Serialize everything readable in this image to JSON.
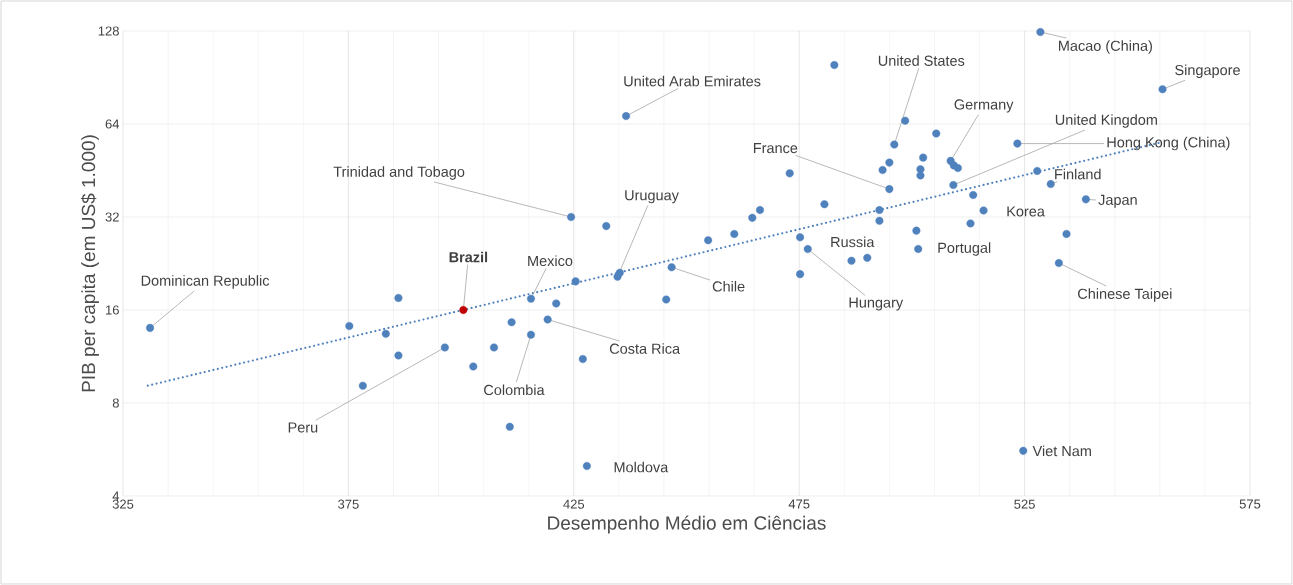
{
  "chart_data": {
    "type": "scatter",
    "xlabel": "Desempenho Médio em Ciências",
    "ylabel": "PIB per capita (em US$ 1.000)",
    "log": "y",
    "grid": true,
    "xlim": [
      325,
      575
    ],
    "ylim": [
      4,
      128
    ],
    "xticks": [
      325,
      375,
      425,
      475,
      525,
      575
    ],
    "yticks": [
      4,
      8,
      16,
      32,
      64,
      128
    ],
    "series": [
      {
        "color": "#4f81bd",
        "marker": "circle",
        "x": [
          331.0,
          386.1,
          375.2,
          383.3,
          386.1,
          378.2,
          396.4,
          402.7,
          407.3,
          424.4,
          432.2,
          454.8,
          460.6,
          434.7,
          435.2,
          425.4,
          446.7,
          445.5,
          415.5,
          421.1,
          419.2,
          411.2,
          415.5,
          427.0,
          410.8,
          427.9,
          436.6,
          482.8,
          498.5,
          496.1,
          505.4,
          502.5,
          495.0,
          493.5,
          501.9,
          501.9,
          508.6,
          509.3,
          510.2,
          495.0,
          509.2,
          513.6,
          515.9,
          513.0,
          472.9,
          480.6,
          492.8,
          492.8,
          501.0,
          501.4,
          475.2,
          476.9,
          486.6,
          490.1,
          475.2,
          466.3,
          464.6,
          528.5,
          555.6,
          523.4,
          527.8,
          530.8,
          538.6,
          534.3,
          532.6,
          524.7
        ],
        "values": [
          14.0,
          17.5,
          14.2,
          13.4,
          11.4,
          9.1,
          12.1,
          10.5,
          12.1,
          32,
          29.9,
          26.9,
          28.2,
          20.5,
          21.1,
          19.8,
          22.0,
          17.3,
          17.4,
          16.8,
          14.9,
          14.6,
          13.3,
          11.1,
          6.7,
          5.0,
          67.9,
          99.3,
          65.6,
          54.9,
          59.6,
          49.8,
          48.0,
          45.4,
          45.7,
          43.6,
          48.6,
          47.0,
          46.1,
          39.4,
          40.6,
          37.7,
          33.6,
          30.5,
          44.3,
          35.2,
          33.7,
          31.1,
          28.9,
          25.2,
          27.5,
          25.2,
          23.1,
          23.6,
          20.9,
          33.7,
          31.8,
          127,
          82.9,
          55.3,
          45.1,
          40.9,
          36.5,
          28.2,
          22.7,
          5.6
        ]
      },
      {
        "color": "#c00000",
        "marker": "circle",
        "x": [
          400.5
        ],
        "values": [
          16
        ]
      },
      {
        "type": "line",
        "color": "#4f81bd",
        "marker": "none",
        "line_style": "dotted",
        "x": [
          330.5,
          555.0
        ],
        "values": [
          9.1,
          55.7
        ]
      }
    ],
    "annotations": [
      {
        "text": "Dominican Republic",
        "x": 331.0,
        "y": 14.0
      },
      {
        "text": "Brazil",
        "x": 400.5,
        "y": 16
      },
      {
        "text": "Peru",
        "x": 396.4,
        "y": 12.1
      },
      {
        "text": "Mexico",
        "x": 415.5,
        "y": 17.4
      },
      {
        "text": "Colombia",
        "x": 415.5,
        "y": 13.3
      },
      {
        "text": "Costa Rica",
        "x": 419.2,
        "y": 14.9
      },
      {
        "text": "Trinidad and Tobago",
        "x": 424.4,
        "y": 32
      },
      {
        "text": "Uruguay",
        "x": 434.7,
        "y": 20.5
      },
      {
        "text": "Chile",
        "x": 446.7,
        "y": 22.0
      },
      {
        "text": "Moldova",
        "x": 427.9,
        "y": 5.0
      },
      {
        "text": "United Arab Emirates",
        "x": 436.6,
        "y": 67.9
      },
      {
        "text": "United States",
        "x": 496.1,
        "y": 54.9
      },
      {
        "text": "France",
        "x": 495.0,
        "y": 39.4
      },
      {
        "text": "Germany",
        "x": 508.6,
        "y": 48.6
      },
      {
        "text": "United Kingdom",
        "x": 509.2,
        "y": 40.6
      },
      {
        "text": "Hong Kong (China)",
        "x": 523.4,
        "y": 55.3
      },
      {
        "text": "Macao  (China)",
        "x": 528.5,
        "y": 127
      },
      {
        "text": "Singapore",
        "x": 555.6,
        "y": 82.9
      },
      {
        "text": "Finland",
        "x": 530.8,
        "y": 40.9
      },
      {
        "text": "Japan",
        "x": 538.6,
        "y": 36.5
      },
      {
        "text": "Chinese Taipei",
        "x": 532.6,
        "y": 22.7
      },
      {
        "text": "Korea",
        "x": 515.9,
        "y": 33.6
      },
      {
        "text": "Portugal",
        "x": 501.4,
        "y": 25.2
      },
      {
        "text": "Russia",
        "x": 490.1,
        "y": 23.6
      },
      {
        "text": "Hungary",
        "x": 476.9,
        "y": 25.2
      },
      {
        "text": "Viet Nam",
        "x": 524.7,
        "y": 5.6
      }
    ]
  }
}
